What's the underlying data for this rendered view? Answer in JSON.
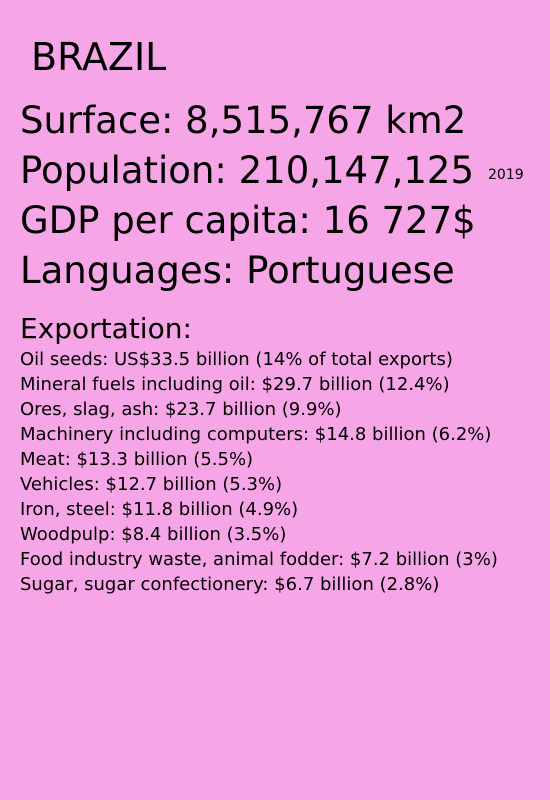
{
  "country": "BRAZIL",
  "facts": {
    "surface": "Surface:  8,515,767 km2",
    "population": "Population: 210,147,125",
    "population_year": "2019",
    "gdp": "GDP per capita: 16 727$",
    "languages": "Languages: Portuguese"
  },
  "exportation": {
    "title": "Exportation:",
    "items": [
      "Oil seeds: US$33.5 billion (14% of total exports)",
      "Mineral fuels including oil: $29.7 billion (12.4%)",
      "Ores, slag, ash: $23.7 billion (9.9%)",
      "Machinery including computers: $14.8 billion (6.2%)",
      "Meat: $13.3 billion (5.5%)",
      "Vehicles: $12.7 billion (5.3%)",
      "Iron, steel: $11.8 billion (4.9%)",
      "Woodpulp: $8.4 billion (3.5%)",
      "Food industry waste, animal fodder: $7.2 billion (3%)",
      "Sugar, sugar confectionery: $6.7 billion (2.8%)"
    ]
  },
  "colors": {
    "background": "#f6a6e6",
    "text": "#000000"
  }
}
